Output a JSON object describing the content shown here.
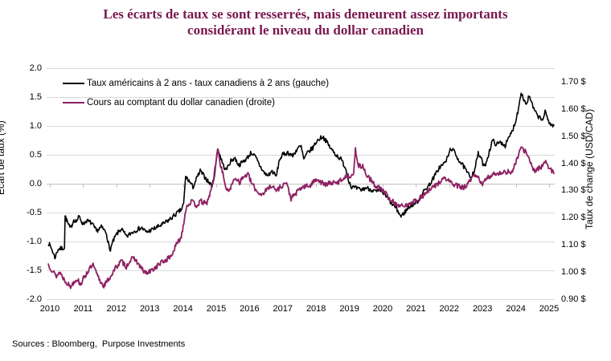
{
  "title": {
    "line1": "Les écarts de taux se sont resserrés, mais demeurent assez importants",
    "line2": "considérant le niveau du dollar canadien"
  },
  "source": {
    "text": "Sources : Bloomberg,  Purpose Investments"
  },
  "colors": {
    "title": "#7A1850",
    "spread_line": "#000000",
    "cad_line": "#8E2063",
    "grid": "#D9D9D9",
    "zero_axis": "#BFBFBF"
  },
  "chart_data": {
    "type": "line",
    "title": "Les écarts de taux se sont resserrés, mais demeurent assez importants considérant le niveau du dollar canadien",
    "legend_position": "top-left-inside",
    "grid": "horizontal",
    "left_axis": {
      "label": "Écart de taux (%)",
      "min": -2.0,
      "max": 2.0,
      "step": 0.5,
      "tick_values": [
        2.0,
        1.5,
        1.0,
        0.5,
        0.0,
        -0.5,
        -1.0,
        -1.5,
        -2.0
      ],
      "tick_labels": [
        "2.0",
        "1.5",
        "1.0",
        "0.5",
        "0.0",
        "-0.5",
        "-1.0",
        "-1.5",
        "-2.0"
      ]
    },
    "right_axis": {
      "label": "Taux de change (USD/CAD)",
      "min": 0.9,
      "scale_max": 1.75,
      "step": 0.1,
      "tick_values": [
        1.7,
        1.6,
        1.5,
        1.4,
        1.3,
        1.2,
        1.1,
        1.0,
        0.9
      ],
      "tick_labels": [
        "1.70 $",
        "1.60 $",
        "1.50 $",
        "1.40 $",
        "1.30 $",
        "1.20 $",
        "1.10 $",
        "1.00 $",
        "0.90 $"
      ]
    },
    "x_axis": {
      "min": 2009.95,
      "max": 2025.2,
      "tick_values": [
        2010,
        2011,
        2012,
        2013,
        2014,
        2015,
        2016,
        2017,
        2018,
        2019,
        2020,
        2021,
        2022,
        2023,
        2024,
        2025
      ],
      "tick_labels": [
        "2010",
        "2011",
        "2012",
        "2013",
        "2014",
        "2015",
        "2016",
        "2017",
        "2018",
        "2019",
        "2020",
        "2021",
        "2022",
        "2023",
        "2024",
        "2025"
      ]
    },
    "legend": [
      {
        "label": "Taux américains à 2 ans - taux canadiens à 2 ans (gauche)",
        "color": "#000000"
      },
      {
        "label": "Cours au comptant du dollar canadien (droite)",
        "color": "#8E2063"
      }
    ],
    "series": [
      {
        "name": "Taux américains à 2 ans - taux canadiens à 2 ans",
        "axis": "left",
        "color": "#000000",
        "width": 1.6,
        "noise": 0.04,
        "seed": 7,
        "points": [
          [
            2009.95,
            -1.02
          ],
          [
            2010.05,
            -1.12
          ],
          [
            2010.15,
            -1.28
          ],
          [
            2010.25,
            -1.13
          ],
          [
            2010.38,
            -1.12
          ],
          [
            2010.44,
            -1.1
          ],
          [
            2010.46,
            -0.56
          ],
          [
            2010.55,
            -0.7
          ],
          [
            2010.62,
            -0.78
          ],
          [
            2010.72,
            -0.62
          ],
          [
            2010.8,
            -0.65
          ],
          [
            2010.88,
            -0.57
          ],
          [
            2011.0,
            -0.7
          ],
          [
            2011.1,
            -0.64
          ],
          [
            2011.25,
            -0.68
          ],
          [
            2011.4,
            -0.82
          ],
          [
            2011.55,
            -0.75
          ],
          [
            2011.7,
            -0.85
          ],
          [
            2011.8,
            -1.16
          ],
          [
            2011.9,
            -1.0
          ],
          [
            2012.0,
            -0.88
          ],
          [
            2012.15,
            -0.78
          ],
          [
            2012.3,
            -0.92
          ],
          [
            2012.45,
            -0.85
          ],
          [
            2012.6,
            -0.8
          ],
          [
            2012.75,
            -0.76
          ],
          [
            2012.9,
            -0.84
          ],
          [
            2013.05,
            -0.8
          ],
          [
            2013.2,
            -0.76
          ],
          [
            2013.4,
            -0.7
          ],
          [
            2013.6,
            -0.62
          ],
          [
            2013.8,
            -0.52
          ],
          [
            2013.95,
            -0.45
          ],
          [
            2014.02,
            -0.35
          ],
          [
            2014.08,
            0.12
          ],
          [
            2014.18,
            0.05
          ],
          [
            2014.3,
            -0.06
          ],
          [
            2014.42,
            0.1
          ],
          [
            2014.52,
            0.22
          ],
          [
            2014.65,
            0.12
          ],
          [
            2014.78,
            0.02
          ],
          [
            2014.88,
            -0.04
          ],
          [
            2014.96,
            0.2
          ],
          [
            2015.04,
            0.6
          ],
          [
            2015.12,
            0.48
          ],
          [
            2015.22,
            0.3
          ],
          [
            2015.3,
            0.24
          ],
          [
            2015.42,
            0.38
          ],
          [
            2015.55,
            0.45
          ],
          [
            2015.68,
            0.32
          ],
          [
            2015.8,
            0.38
          ],
          [
            2015.92,
            0.44
          ],
          [
            2016.05,
            0.54
          ],
          [
            2016.18,
            0.46
          ],
          [
            2016.3,
            0.32
          ],
          [
            2016.45,
            0.18
          ],
          [
            2016.55,
            0.14
          ],
          [
            2016.68,
            0.22
          ],
          [
            2016.8,
            0.12
          ],
          [
            2016.9,
            0.42
          ],
          [
            2017.0,
            0.5
          ],
          [
            2017.15,
            0.54
          ],
          [
            2017.3,
            0.48
          ],
          [
            2017.45,
            0.62
          ],
          [
            2017.55,
            0.64
          ],
          [
            2017.63,
            0.42
          ],
          [
            2017.75,
            0.54
          ],
          [
            2017.9,
            0.62
          ],
          [
            2018.0,
            0.72
          ],
          [
            2018.1,
            0.78
          ],
          [
            2018.2,
            0.82
          ],
          [
            2018.32,
            0.72
          ],
          [
            2018.45,
            0.6
          ],
          [
            2018.6,
            0.5
          ],
          [
            2018.75,
            0.42
          ],
          [
            2018.88,
            0.28
          ],
          [
            2018.96,
            0.1
          ],
          [
            2019.05,
            -0.05
          ],
          [
            2019.2,
            -0.08
          ],
          [
            2019.35,
            -0.11
          ],
          [
            2019.5,
            -0.07
          ],
          [
            2019.65,
            -0.1
          ],
          [
            2019.8,
            -0.14
          ],
          [
            2019.95,
            -0.12
          ],
          [
            2020.1,
            -0.22
          ],
          [
            2020.25,
            -0.33
          ],
          [
            2020.4,
            -0.42
          ],
          [
            2020.55,
            -0.57
          ],
          [
            2020.65,
            -0.5
          ],
          [
            2020.8,
            -0.4
          ],
          [
            2020.95,
            -0.34
          ],
          [
            2021.1,
            -0.28
          ],
          [
            2021.25,
            -0.12
          ],
          [
            2021.4,
            -0.02
          ],
          [
            2021.55,
            0.12
          ],
          [
            2021.7,
            0.28
          ],
          [
            2021.85,
            0.35
          ],
          [
            2021.95,
            0.45
          ],
          [
            2022.05,
            0.62
          ],
          [
            2022.15,
            0.55
          ],
          [
            2022.3,
            0.4
          ],
          [
            2022.45,
            0.28
          ],
          [
            2022.55,
            0.18
          ],
          [
            2022.65,
            0.12
          ],
          [
            2022.75,
            0.22
          ],
          [
            2022.87,
            0.52
          ],
          [
            2022.95,
            0.45
          ],
          [
            2023.05,
            0.28
          ],
          [
            2023.15,
            0.45
          ],
          [
            2023.3,
            0.75
          ],
          [
            2023.42,
            0.68
          ],
          [
            2023.55,
            0.72
          ],
          [
            2023.68,
            0.66
          ],
          [
            2023.8,
            0.8
          ],
          [
            2023.9,
            0.92
          ],
          [
            2024.0,
            1.1
          ],
          [
            2024.08,
            1.3
          ],
          [
            2024.16,
            1.6
          ],
          [
            2024.24,
            1.45
          ],
          [
            2024.32,
            1.38
          ],
          [
            2024.4,
            1.52
          ],
          [
            2024.5,
            1.35
          ],
          [
            2024.6,
            1.22
          ],
          [
            2024.7,
            1.15
          ],
          [
            2024.8,
            1.1
          ],
          [
            2024.88,
            1.24
          ],
          [
            2024.96,
            1.12
          ],
          [
            2025.05,
            1.02
          ],
          [
            2025.15,
            1.0
          ]
        ]
      },
      {
        "name": "Cours au comptant du dollar canadien",
        "axis": "right",
        "color": "#8E2063",
        "width": 1.8,
        "noise": 0.0095,
        "seed": 13,
        "points": [
          [
            2009.95,
            1.03
          ],
          [
            2010.1,
            1.0
          ],
          [
            2010.2,
            0.985
          ],
          [
            2010.3,
            1.0
          ],
          [
            2010.42,
            0.975
          ],
          [
            2010.52,
            0.96
          ],
          [
            2010.62,
            0.945
          ],
          [
            2010.72,
            0.965
          ],
          [
            2010.82,
            0.975
          ],
          [
            2010.92,
            0.955
          ],
          [
            2011.05,
            0.985
          ],
          [
            2011.18,
            1.01
          ],
          [
            2011.3,
            1.025
          ],
          [
            2011.4,
            0.995
          ],
          [
            2011.52,
            0.965
          ],
          [
            2011.62,
            0.95
          ],
          [
            2011.75,
            0.97
          ],
          [
            2011.88,
            0.995
          ],
          [
            2012.0,
            1.02
          ],
          [
            2012.15,
            1.04
          ],
          [
            2012.3,
            1.02
          ],
          [
            2012.42,
            1.045
          ],
          [
            2012.55,
            1.05
          ],
          [
            2012.68,
            1.025
          ],
          [
            2012.8,
            1.005
          ],
          [
            2012.92,
            0.995
          ],
          [
            2013.05,
            1.005
          ],
          [
            2013.2,
            1.02
          ],
          [
            2013.35,
            1.035
          ],
          [
            2013.5,
            1.045
          ],
          [
            2013.65,
            1.06
          ],
          [
            2013.8,
            1.1
          ],
          [
            2013.95,
            1.13
          ],
          [
            2014.1,
            1.24
          ],
          [
            2014.25,
            1.26
          ],
          [
            2014.4,
            1.245
          ],
          [
            2014.55,
            1.26
          ],
          [
            2014.7,
            1.25
          ],
          [
            2014.82,
            1.29
          ],
          [
            2014.92,
            1.34
          ],
          [
            2015.04,
            1.455
          ],
          [
            2015.12,
            1.4
          ],
          [
            2015.22,
            1.35
          ],
          [
            2015.32,
            1.295
          ],
          [
            2015.45,
            1.315
          ],
          [
            2015.58,
            1.35
          ],
          [
            2015.7,
            1.33
          ],
          [
            2015.82,
            1.35
          ],
          [
            2015.95,
            1.36
          ],
          [
            2016.05,
            1.33
          ],
          [
            2016.2,
            1.3
          ],
          [
            2016.35,
            1.285
          ],
          [
            2016.5,
            1.3
          ],
          [
            2016.65,
            1.32
          ],
          [
            2016.8,
            1.3
          ],
          [
            2016.95,
            1.315
          ],
          [
            2017.1,
            1.33
          ],
          [
            2017.25,
            1.27
          ],
          [
            2017.4,
            1.29
          ],
          [
            2017.55,
            1.31
          ],
          [
            2017.7,
            1.315
          ],
          [
            2017.85,
            1.32
          ],
          [
            2018.0,
            1.345
          ],
          [
            2018.15,
            1.33
          ],
          [
            2018.3,
            1.32
          ],
          [
            2018.45,
            1.33
          ],
          [
            2018.6,
            1.325
          ],
          [
            2018.75,
            1.34
          ],
          [
            2018.88,
            1.35
          ],
          [
            2019.0,
            1.355
          ],
          [
            2019.13,
            1.36
          ],
          [
            2019.18,
            1.45
          ],
          [
            2019.28,
            1.39
          ],
          [
            2019.4,
            1.39
          ],
          [
            2019.5,
            1.36
          ],
          [
            2019.6,
            1.345
          ],
          [
            2019.75,
            1.32
          ],
          [
            2019.9,
            1.31
          ],
          [
            2020.05,
            1.295
          ],
          [
            2020.2,
            1.27
          ],
          [
            2020.35,
            1.255
          ],
          [
            2020.5,
            1.245
          ],
          [
            2020.65,
            1.24
          ],
          [
            2020.8,
            1.255
          ],
          [
            2020.95,
            1.26
          ],
          [
            2021.1,
            1.27
          ],
          [
            2021.25,
            1.285
          ],
          [
            2021.4,
            1.3
          ],
          [
            2021.55,
            1.315
          ],
          [
            2021.7,
            1.33
          ],
          [
            2021.85,
            1.345
          ],
          [
            2022.0,
            1.335
          ],
          [
            2022.15,
            1.32
          ],
          [
            2022.3,
            1.315
          ],
          [
            2022.45,
            1.31
          ],
          [
            2022.6,
            1.33
          ],
          [
            2022.75,
            1.355
          ],
          [
            2022.88,
            1.345
          ],
          [
            2023.0,
            1.325
          ],
          [
            2023.15,
            1.345
          ],
          [
            2023.3,
            1.36
          ],
          [
            2023.45,
            1.365
          ],
          [
            2023.6,
            1.365
          ],
          [
            2023.75,
            1.37
          ],
          [
            2023.9,
            1.365
          ],
          [
            2024.0,
            1.405
          ],
          [
            2024.1,
            1.44
          ],
          [
            2024.18,
            1.455
          ],
          [
            2024.28,
            1.445
          ],
          [
            2024.38,
            1.42
          ],
          [
            2024.48,
            1.39
          ],
          [
            2024.58,
            1.37
          ],
          [
            2024.7,
            1.385
          ],
          [
            2024.8,
            1.39
          ],
          [
            2024.9,
            1.41
          ],
          [
            2025.0,
            1.385
          ],
          [
            2025.08,
            1.37
          ],
          [
            2025.15,
            1.36
          ]
        ]
      }
    ]
  }
}
